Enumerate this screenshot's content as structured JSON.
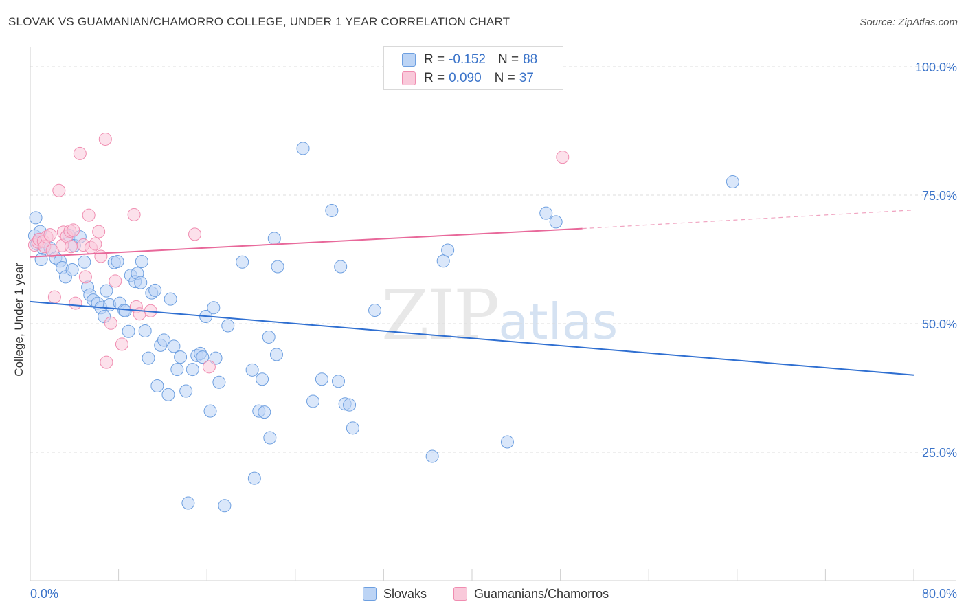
{
  "header": {
    "title": "SLOVAK VS GUAMANIAN/CHAMORRO COLLEGE, UNDER 1 YEAR CORRELATION CHART",
    "source": "Source: ZipAtlas.com"
  },
  "watermark": {
    "zip": "ZIP",
    "atlas": "atlas"
  },
  "legend": {
    "r_label": "R =",
    "n_label": "N =",
    "rows": [
      {
        "r": "-0.152",
        "n": "88",
        "color": "#6d9fe0",
        "fill": "#bcd4f5"
      },
      {
        "r": "0.090",
        "n": "37",
        "color": "#f08cb0",
        "fill": "#f9c9da"
      }
    ]
  },
  "chart_data": {
    "type": "scatter",
    "title": "SLOVAK VS GUAMANIAN/CHAMORRO COLLEGE, UNDER 1 YEAR CORRELATION CHART",
    "xlabel": "",
    "ylabel": "College, Under 1 year",
    "xlim": [
      0,
      80
    ],
    "ylim": [
      0,
      105
    ],
    "x_tick_labels": [
      "0.0%",
      "80.0%"
    ],
    "y_tick_labels": [
      "25.0%",
      "50.0%",
      "75.0%",
      "100.0%"
    ],
    "y_ticks": [
      25,
      50,
      75,
      100
    ],
    "grid": true,
    "legend_position": "bottom",
    "series": [
      {
        "name": "Slovaks",
        "color": "#3a73d1",
        "fill": "#bcd4f5",
        "trend": {
          "x": [
            0,
            80
          ],
          "y": [
            54.3,
            40.0
          ]
        },
        "points": [
          [
            0.5,
            70.6
          ],
          [
            0.4,
            67.1
          ],
          [
            0.9,
            67.9
          ],
          [
            0.6,
            65.5
          ],
          [
            1.2,
            64.6
          ],
          [
            1.0,
            62.5
          ],
          [
            1.8,
            64.7
          ],
          [
            2.3,
            62.8
          ],
          [
            2.7,
            62.2
          ],
          [
            2.9,
            60.9
          ],
          [
            3.2,
            59.1
          ],
          [
            3.5,
            67.2
          ],
          [
            4.0,
            65.2
          ],
          [
            4.5,
            66.9
          ],
          [
            4.9,
            62.0
          ],
          [
            5.2,
            57.1
          ],
          [
            5.4,
            55.6
          ],
          [
            5.7,
            54.6
          ],
          [
            6.1,
            54.0
          ],
          [
            6.4,
            53.1
          ],
          [
            6.7,
            51.4
          ],
          [
            6.9,
            56.4
          ],
          [
            7.2,
            53.7
          ],
          [
            7.6,
            61.9
          ],
          [
            7.9,
            62.1
          ],
          [
            8.1,
            54.0
          ],
          [
            8.5,
            52.6
          ],
          [
            8.6,
            52.5
          ],
          [
            8.9,
            48.5
          ],
          [
            9.1,
            59.4
          ],
          [
            9.5,
            58.2
          ],
          [
            9.7,
            59.8
          ],
          [
            10.1,
            62.1
          ],
          [
            10.4,
            48.6
          ],
          [
            10.7,
            43.3
          ],
          [
            11.0,
            56.0
          ],
          [
            11.3,
            56.5
          ],
          [
            11.5,
            37.9
          ],
          [
            11.8,
            45.8
          ],
          [
            12.1,
            46.8
          ],
          [
            12.5,
            36.2
          ],
          [
            12.7,
            54.8
          ],
          [
            13.0,
            45.6
          ],
          [
            13.3,
            41.1
          ],
          [
            13.6,
            43.5
          ],
          [
            14.1,
            36.9
          ],
          [
            14.3,
            15.1
          ],
          [
            14.7,
            41.1
          ],
          [
            15.1,
            43.8
          ],
          [
            15.4,
            44.2
          ],
          [
            15.6,
            43.5
          ],
          [
            15.9,
            51.4
          ],
          [
            16.3,
            33.0
          ],
          [
            16.6,
            53.1
          ],
          [
            16.8,
            43.3
          ],
          [
            17.1,
            38.6
          ],
          [
            17.6,
            14.6
          ],
          [
            17.9,
            49.6
          ],
          [
            19.2,
            62.0
          ],
          [
            20.1,
            41.0
          ],
          [
            20.3,
            19.9
          ],
          [
            20.7,
            33.0
          ],
          [
            21.0,
            39.2
          ],
          [
            21.2,
            32.8
          ],
          [
            21.7,
            27.8
          ],
          [
            21.6,
            47.4
          ],
          [
            22.1,
            66.6
          ],
          [
            22.3,
            44.0
          ],
          [
            22.4,
            61.1
          ],
          [
            24.7,
            84.1
          ],
          [
            25.6,
            34.9
          ],
          [
            26.4,
            39.2
          ],
          [
            27.3,
            72.0
          ],
          [
            27.9,
            38.8
          ],
          [
            28.1,
            61.1
          ],
          [
            28.5,
            34.4
          ],
          [
            28.9,
            34.2
          ],
          [
            29.2,
            29.7
          ],
          [
            31.2,
            52.6
          ],
          [
            36.4,
            24.2
          ],
          [
            37.4,
            62.2
          ],
          [
            37.8,
            64.3
          ],
          [
            43.2,
            27.0
          ],
          [
            46.7,
            71.5
          ],
          [
            47.6,
            69.8
          ],
          [
            63.6,
            77.6
          ],
          [
            10.0,
            58.0
          ],
          [
            3.8,
            60.5
          ]
        ]
      },
      {
        "name": "Guamanians/Chamorros",
        "color": "#e8689a",
        "fill": "#f9c9da",
        "trend": {
          "x": [
            0,
            50
          ],
          "y": [
            63.0,
            68.5
          ]
        },
        "trend_dashed": {
          "x": [
            50,
            80
          ],
          "y": [
            68.5,
            72.1
          ]
        },
        "points": [
          [
            0.4,
            65.3
          ],
          [
            0.7,
            65.9
          ],
          [
            0.8,
            66.4
          ],
          [
            1.2,
            66.0
          ],
          [
            1.3,
            65.0
          ],
          [
            1.5,
            66.9
          ],
          [
            2.2,
            55.2
          ],
          [
            2.6,
            75.9
          ],
          [
            2.9,
            65.2
          ],
          [
            3.0,
            67.8
          ],
          [
            3.3,
            67.0
          ],
          [
            3.6,
            68.0
          ],
          [
            3.7,
            65.0
          ],
          [
            3.9,
            68.2
          ],
          [
            4.1,
            54.0
          ],
          [
            4.5,
            83.1
          ],
          [
            4.8,
            65.3
          ],
          [
            5.0,
            59.1
          ],
          [
            5.3,
            71.1
          ],
          [
            5.5,
            64.8
          ],
          [
            6.2,
            67.9
          ],
          [
            6.4,
            63.1
          ],
          [
            6.8,
            85.9
          ],
          [
            6.9,
            42.5
          ],
          [
            7.3,
            50.1
          ],
          [
            7.7,
            58.3
          ],
          [
            8.3,
            46.0
          ],
          [
            9.4,
            71.2
          ],
          [
            9.6,
            53.3
          ],
          [
            9.9,
            51.9
          ],
          [
            10.9,
            52.5
          ],
          [
            14.9,
            67.4
          ],
          [
            16.2,
            41.6
          ],
          [
            48.2,
            82.4
          ],
          [
            2.0,
            64.2
          ],
          [
            5.9,
            65.5
          ],
          [
            1.8,
            67.3
          ]
        ]
      }
    ]
  }
}
